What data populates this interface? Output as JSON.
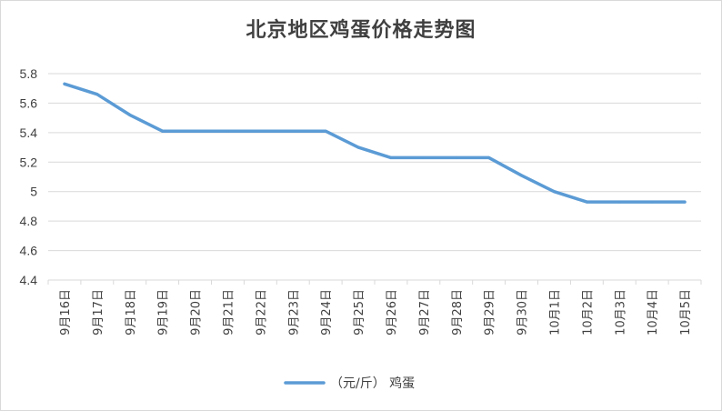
{
  "chart_data": {
    "type": "line",
    "title": "北京地区鸡蛋价格走势图",
    "xlabel": "",
    "ylabel": "",
    "categories": [
      "9月16日",
      "9月17日",
      "9月18日",
      "9月19日",
      "9月20日",
      "9月21日",
      "9月22日",
      "9月23日",
      "9月24日",
      "9月25日",
      "9月26日",
      "9月27日",
      "9月28日",
      "9月29日",
      "9月30日",
      "10月1日",
      "10月2日",
      "10月3日",
      "10月4日",
      "10月5日"
    ],
    "series": [
      {
        "name": "（元/斤） 鸡蛋",
        "color": "#5b9bd5",
        "values": [
          5.73,
          5.66,
          5.52,
          5.41,
          5.41,
          5.41,
          5.41,
          5.41,
          5.41,
          5.3,
          5.23,
          5.23,
          5.23,
          5.23,
          5.11,
          5.0,
          4.93,
          4.93,
          4.93,
          4.93
        ]
      }
    ],
    "ylim": [
      4.4,
      5.8
    ],
    "yticks": [
      "4.4",
      "4.6",
      "4.8",
      "5",
      "5.2",
      "5.4",
      "5.6",
      "5.8"
    ],
    "grid": true,
    "legend": "bottom"
  }
}
